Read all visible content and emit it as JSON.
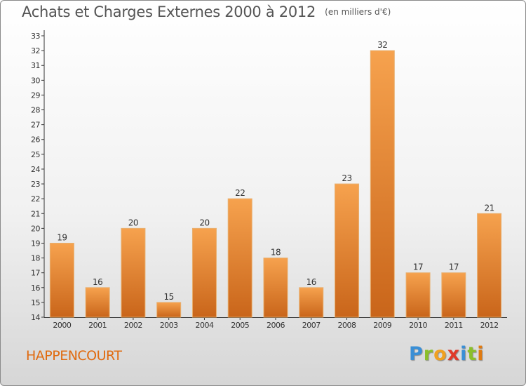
{
  "header": {
    "title": "Achats et Charges Externes 2000 à 2012",
    "unit": "(en milliers d'€)"
  },
  "footer": {
    "commune": "HAPPENCOURT"
  },
  "logo": {
    "letters": [
      "P",
      "r",
      "o",
      "x",
      "i",
      "t",
      "i"
    ],
    "colors": [
      "#3a8fd6",
      "#8bbf2a",
      "#f0a020",
      "#e03a2a",
      "#3a8fd6",
      "#8bbf2a",
      "#e07a10"
    ]
  },
  "chart_data": {
    "type": "bar",
    "categories": [
      "2000",
      "2001",
      "2002",
      "2003",
      "2004",
      "2005",
      "2006",
      "2007",
      "2008",
      "2009",
      "2010",
      "2011",
      "2012"
    ],
    "values": [
      19,
      16,
      20,
      15,
      20,
      22,
      18,
      16,
      23,
      32,
      17,
      17,
      21
    ],
    "title": "Achats et Charges Externes 2000 à 2012",
    "ylabel": "",
    "xlabel": "",
    "ylim": [
      14,
      33
    ],
    "bar_color": "#f39a3c",
    "grid": false,
    "legend": "none"
  }
}
